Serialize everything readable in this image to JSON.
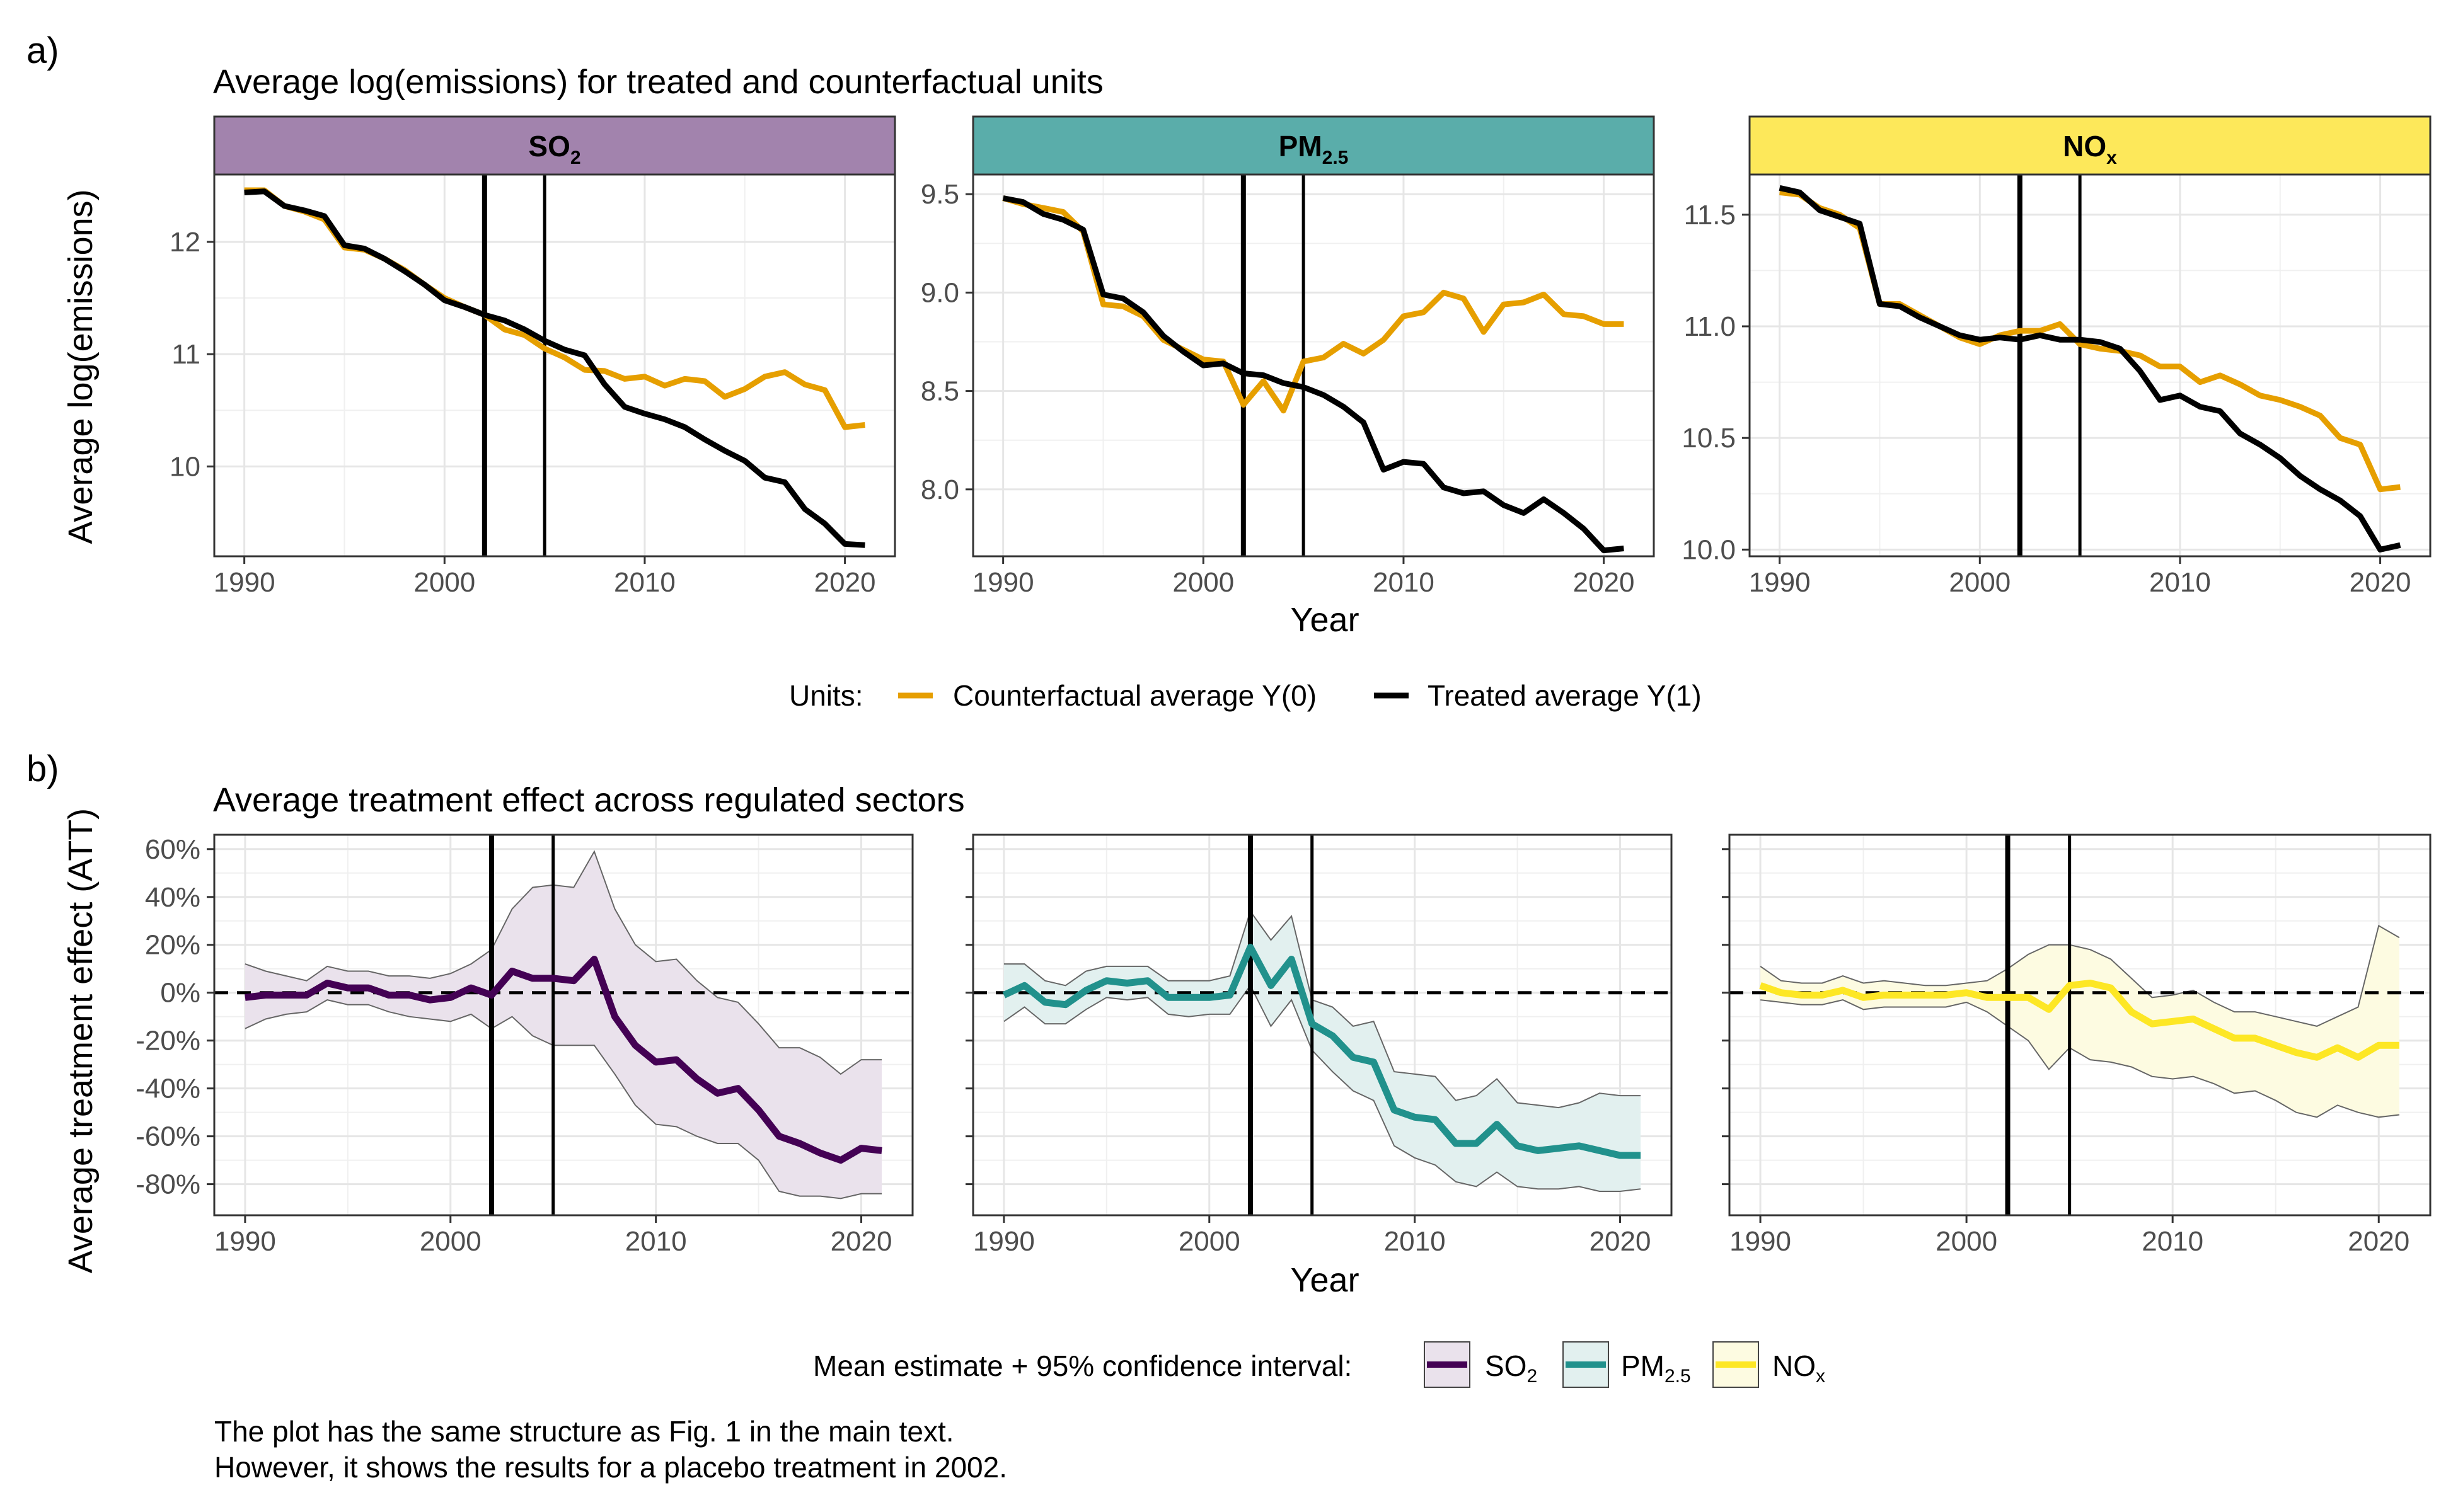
{
  "panel_a_label": "a)",
  "panel_b_label": "b)",
  "top_title": "Average log(emissions) for treated and counterfactual units",
  "bottom_title": "Average treatment effect across regulated sectors",
  "top_ylabel": "Average log(emissions)",
  "bottom_ylabel": "Average treatment effect (ATT)",
  "xlabel": "Year",
  "strips": [
    {
      "main": "SO",
      "sub": "2",
      "color": "#a283ad"
    },
    {
      "main": "PM",
      "sub": "2.5",
      "color": "#5aadaa"
    },
    {
      "main": "NO",
      "sub": "x",
      "color": "#fde85a"
    }
  ],
  "legend_top": {
    "title": "Units:",
    "items": [
      {
        "label": "Counterfactual average Y(0)",
        "color": "#E69F00"
      },
      {
        "label": "Treated average Y(1)",
        "color": "#000000"
      }
    ]
  },
  "legend_bottom": {
    "title": "Mean estimate + 95% confidence interval:",
    "items": [
      {
        "main": "SO",
        "sub": "2",
        "color": "#440154",
        "fill": "#eae2ec"
      },
      {
        "main": "PM",
        "sub": "2.5",
        "color": "#21918c",
        "fill": "#e2f0ef"
      },
      {
        "main": "NO",
        "sub": "x",
        "color": "#fde725",
        "fill": "#fdfbe1"
      }
    ]
  },
  "caption": {
    "line1": "The plot has the same structure as Fig. 1 in the main text.",
    "line2": "However, it shows the results for a placebo treatment in 2002."
  },
  "chart_data": [
    {
      "type": "line",
      "panel": "SO2 log emissions",
      "vlines": [
        2002,
        2005
      ],
      "xlim": [
        1988.5,
        2022.5
      ],
      "xticks": [
        1990,
        2000,
        2010,
        2020
      ],
      "ylim": [
        9.2,
        12.6
      ],
      "yticks": [
        10,
        11,
        12
      ],
      "ytick_labels": [
        "10",
        "11",
        "12"
      ],
      "x": [
        1990,
        1991,
        1992,
        1993,
        1994,
        1995,
        1996,
        1997,
        1998,
        1999,
        2000,
        2001,
        2002,
        2003,
        2004,
        2005,
        2006,
        2007,
        2008,
        2009,
        2010,
        2011,
        2012,
        2013,
        2014,
        2015,
        2016,
        2017,
        2018,
        2019,
        2020,
        2021
      ],
      "series": [
        {
          "name": "Counterfactual average Y(0)",
          "color": "#E69F00",
          "values": [
            12.46,
            12.46,
            12.32,
            12.27,
            12.2,
            11.95,
            11.93,
            11.85,
            11.75,
            11.62,
            11.5,
            11.42,
            11.35,
            11.22,
            11.17,
            11.05,
            10.97,
            10.86,
            10.85,
            10.78,
            10.8,
            10.72,
            10.78,
            10.76,
            10.62,
            10.69,
            10.8,
            10.84,
            10.73,
            10.68,
            10.35,
            10.37
          ]
        },
        {
          "name": "Treated average Y(1)",
          "color": "#000000",
          "values": [
            12.44,
            12.45,
            12.32,
            12.28,
            12.23,
            11.97,
            11.94,
            11.85,
            11.74,
            11.62,
            11.48,
            11.42,
            11.35,
            11.3,
            11.22,
            11.12,
            11.04,
            10.99,
            10.73,
            10.53,
            10.47,
            10.42,
            10.35,
            10.24,
            10.14,
            10.05,
            9.9,
            9.86,
            9.62,
            9.49,
            9.31,
            9.3
          ]
        }
      ]
    },
    {
      "type": "line",
      "panel": "PM2.5 log emissions",
      "vlines": [
        2002,
        2005
      ],
      "xlim": [
        1988.5,
        2022.5
      ],
      "xticks": [
        1990,
        2000,
        2010,
        2020
      ],
      "ylim": [
        7.66,
        9.6
      ],
      "yticks": [
        8.0,
        8.5,
        9.0,
        9.5
      ],
      "ytick_labels": [
        "8.0",
        "8.5",
        "9.0",
        "9.5"
      ],
      "x": [
        1990,
        1991,
        1992,
        1993,
        1994,
        1995,
        1996,
        1997,
        1998,
        1999,
        2000,
        2001,
        2002,
        2003,
        2004,
        2005,
        2006,
        2007,
        2008,
        2009,
        2010,
        2011,
        2012,
        2013,
        2014,
        2015,
        2016,
        2017,
        2018,
        2019,
        2020,
        2021
      ],
      "series": [
        {
          "name": "Counterfactual average Y(0)",
          "color": "#E69F00",
          "values": [
            9.48,
            9.45,
            9.43,
            9.41,
            9.31,
            8.94,
            8.93,
            8.88,
            8.76,
            8.71,
            8.66,
            8.65,
            8.43,
            8.55,
            8.4,
            8.65,
            8.67,
            8.74,
            8.69,
            8.76,
            8.88,
            8.9,
            9.0,
            8.97,
            8.8,
            8.94,
            8.95,
            8.99,
            8.89,
            8.88,
            8.84,
            8.84
          ]
        },
        {
          "name": "Treated average Y(1)",
          "color": "#000000",
          "values": [
            9.48,
            9.46,
            9.4,
            9.37,
            9.32,
            8.99,
            8.97,
            8.9,
            8.78,
            8.7,
            8.63,
            8.64,
            8.59,
            8.58,
            8.54,
            8.52,
            8.48,
            8.42,
            8.34,
            8.1,
            8.14,
            8.13,
            8.01,
            7.98,
            7.99,
            7.92,
            7.88,
            7.95,
            7.88,
            7.8,
            7.69,
            7.7
          ]
        }
      ]
    },
    {
      "type": "line",
      "panel": "NOx log emissions",
      "vlines": [
        2002,
        2005
      ],
      "xlim": [
        1988.5,
        2022.5
      ],
      "xticks": [
        1990,
        2000,
        2010,
        2020
      ],
      "ylim": [
        9.97,
        11.68
      ],
      "yticks": [
        10.0,
        10.5,
        11.0,
        11.5
      ],
      "ytick_labels": [
        "10.0",
        "10.5",
        "11.0",
        "11.5"
      ],
      "x": [
        1990,
        1991,
        1992,
        1993,
        1994,
        1995,
        1996,
        1997,
        1998,
        1999,
        2000,
        2001,
        2002,
        2003,
        2004,
        2005,
        2006,
        2007,
        2008,
        2009,
        2010,
        2011,
        2012,
        2013,
        2014,
        2015,
        2016,
        2017,
        2018,
        2019,
        2020,
        2021
      ],
      "series": [
        {
          "name": "Counterfactual average Y(0)",
          "color": "#E69F00",
          "values": [
            11.6,
            11.59,
            11.53,
            11.5,
            11.44,
            11.1,
            11.1,
            11.05,
            11.0,
            10.95,
            10.92,
            10.96,
            10.98,
            10.98,
            11.01,
            10.92,
            10.9,
            10.89,
            10.87,
            10.82,
            10.82,
            10.75,
            10.78,
            10.74,
            10.69,
            10.67,
            10.64,
            10.6,
            10.5,
            10.47,
            10.27,
            10.28
          ]
        },
        {
          "name": "Treated average Y(1)",
          "color": "#000000",
          "values": [
            11.62,
            11.6,
            11.52,
            11.49,
            11.46,
            11.1,
            11.09,
            11.04,
            11.0,
            10.96,
            10.94,
            10.95,
            10.94,
            10.96,
            10.94,
            10.94,
            10.93,
            10.9,
            10.8,
            10.67,
            10.69,
            10.64,
            10.62,
            10.52,
            10.47,
            10.41,
            10.33,
            10.27,
            10.22,
            10.15,
            10.0,
            10.02
          ]
        }
      ]
    },
    {
      "type": "area",
      "panel": "SO2 ATT",
      "vlines": [
        2002,
        2005
      ],
      "hline": 0,
      "xlim": [
        1988.5,
        2022.5
      ],
      "xticks": [
        1990,
        2000,
        2010,
        2020
      ],
      "ylim": [
        -93,
        66
      ],
      "yticks": [
        -80,
        -60,
        -40,
        -20,
        0,
        20,
        40,
        60
      ],
      "ytick_labels": [
        "-80%",
        "-60%",
        "-40%",
        "-20%",
        "0%",
        "20%",
        "40%",
        "60%"
      ],
      "x": [
        1990,
        1991,
        1992,
        1993,
        1994,
        1995,
        1996,
        1997,
        1998,
        1999,
        2000,
        2001,
        2002,
        2003,
        2004,
        2005,
        2006,
        2007,
        2008,
        2009,
        2010,
        2011,
        2012,
        2013,
        2014,
        2015,
        2016,
        2017,
        2018,
        2019,
        2020,
        2021
      ],
      "series": [
        {
          "name": "SO2",
          "color": "#440154",
          "fill": "#eae2ec",
          "values": [
            -2,
            -1,
            -1,
            -1,
            4,
            2,
            2,
            -1,
            -1,
            -3,
            -2,
            2,
            -1,
            9,
            6,
            6,
            5,
            14,
            -10,
            -22,
            -29,
            -28,
            -36,
            -42,
            -40,
            -49,
            -60,
            -63,
            -67,
            -70,
            -65,
            -66
          ],
          "upper": [
            12,
            9,
            7,
            5,
            11,
            9,
            9,
            7,
            7,
            6,
            8,
            12,
            18,
            35,
            44,
            45,
            44,
            59,
            35,
            20,
            13,
            14,
            5,
            -2,
            -4,
            -13,
            -23,
            -23,
            -27,
            -34,
            -28,
            -28
          ],
          "lower": [
            -15,
            -11,
            -9,
            -8,
            -3,
            -5,
            -5,
            -8,
            -10,
            -11,
            -12,
            -9,
            -15,
            -10,
            -18,
            -22,
            -22,
            -22,
            -34,
            -47,
            -55,
            -56,
            -60,
            -63,
            -63,
            -70,
            -83,
            -85,
            -85,
            -86,
            -84,
            -84
          ]
        }
      ]
    },
    {
      "type": "area",
      "panel": "PM2.5 ATT",
      "vlines": [
        2002,
        2005
      ],
      "hline": 0,
      "xlim": [
        1988.5,
        2022.5
      ],
      "xticks": [
        1990,
        2000,
        2010,
        2020
      ],
      "ylim": [
        -93,
        66
      ],
      "yticks": [
        -80,
        -60,
        -40,
        -20,
        0,
        20,
        40,
        60
      ],
      "ytick_labels": [],
      "x": [
        1990,
        1991,
        1992,
        1993,
        1994,
        1995,
        1996,
        1997,
        1998,
        1999,
        2000,
        2001,
        2002,
        2003,
        2004,
        2005,
        2006,
        2007,
        2008,
        2009,
        2010,
        2011,
        2012,
        2013,
        2014,
        2015,
        2016,
        2017,
        2018,
        2019,
        2020,
        2021
      ],
      "series": [
        {
          "name": "PM2.5",
          "color": "#21918c",
          "fill": "#e2f0ef",
          "values": [
            -1,
            3,
            -4,
            -5,
            1,
            5,
            4,
            5,
            -2,
            -2,
            -2,
            -1,
            19,
            3,
            14,
            -13,
            -18,
            -27,
            -29,
            -49,
            -52,
            -53,
            -63,
            -63,
            -55,
            -64,
            -66,
            -65,
            -64,
            -66,
            -68,
            -68
          ],
          "upper": [
            12,
            12,
            5,
            3,
            9,
            11,
            11,
            11,
            5,
            5,
            5,
            7,
            34,
            22,
            32,
            -3,
            -6,
            -14,
            -12,
            -33,
            -34,
            -35,
            -45,
            -43,
            -36,
            -46,
            -47,
            -48,
            -46,
            -42,
            -43,
            -43
          ],
          "lower": [
            -12,
            -6,
            -13,
            -13,
            -7,
            -2,
            -3,
            -2,
            -9,
            -10,
            -9,
            -9,
            3,
            -14,
            -3,
            -24,
            -33,
            -41,
            -45,
            -64,
            -69,
            -72,
            -79,
            -81,
            -75,
            -81,
            -82,
            -82,
            -81,
            -83,
            -83,
            -82
          ]
        }
      ]
    },
    {
      "type": "area",
      "panel": "NOx ATT",
      "vlines": [
        2002,
        2005
      ],
      "hline": 0,
      "xlim": [
        1988.5,
        2022.5
      ],
      "xticks": [
        1990,
        2000,
        2010,
        2020
      ],
      "ylim": [
        -93,
        66
      ],
      "yticks": [
        -80,
        -60,
        -40,
        -20,
        0,
        20,
        40,
        60
      ],
      "ytick_labels": [],
      "x": [
        1990,
        1991,
        1992,
        1993,
        1994,
        1995,
        1996,
        1997,
        1998,
        1999,
        2000,
        2001,
        2002,
        2003,
        2004,
        2005,
        2006,
        2007,
        2008,
        2009,
        2010,
        2011,
        2012,
        2013,
        2014,
        2015,
        2016,
        2017,
        2018,
        2019,
        2020,
        2021
      ],
      "series": [
        {
          "name": "NOx",
          "color": "#fde725",
          "fill": "#fdfbe1",
          "values": [
            3,
            0,
            -1,
            -1,
            1,
            -2,
            -1,
            -1,
            -1,
            -1,
            0,
            -2,
            -2,
            -2,
            -7,
            3,
            4,
            2,
            -8,
            -13,
            -12,
            -11,
            -15,
            -19,
            -19,
            -22,
            -25,
            -27,
            -23,
            -27,
            -22,
            -22
          ],
          "upper": [
            11,
            5,
            4,
            4,
            7,
            4,
            5,
            4,
            3,
            3,
            4,
            5,
            10,
            16,
            20,
            20,
            18,
            14,
            6,
            -2,
            -1,
            1,
            -4,
            -8,
            -8,
            -10,
            -12,
            -14,
            -10,
            -6,
            28,
            23
          ],
          "lower": [
            -3,
            -4,
            -5,
            -5,
            -3,
            -7,
            -6,
            -6,
            -6,
            -6,
            -4,
            -8,
            -14,
            -20,
            -32,
            -23,
            -28,
            -29,
            -31,
            -35,
            -36,
            -35,
            -38,
            -42,
            -41,
            -45,
            -50,
            -52,
            -47,
            -50,
            -52,
            -51
          ]
        }
      ]
    }
  ]
}
